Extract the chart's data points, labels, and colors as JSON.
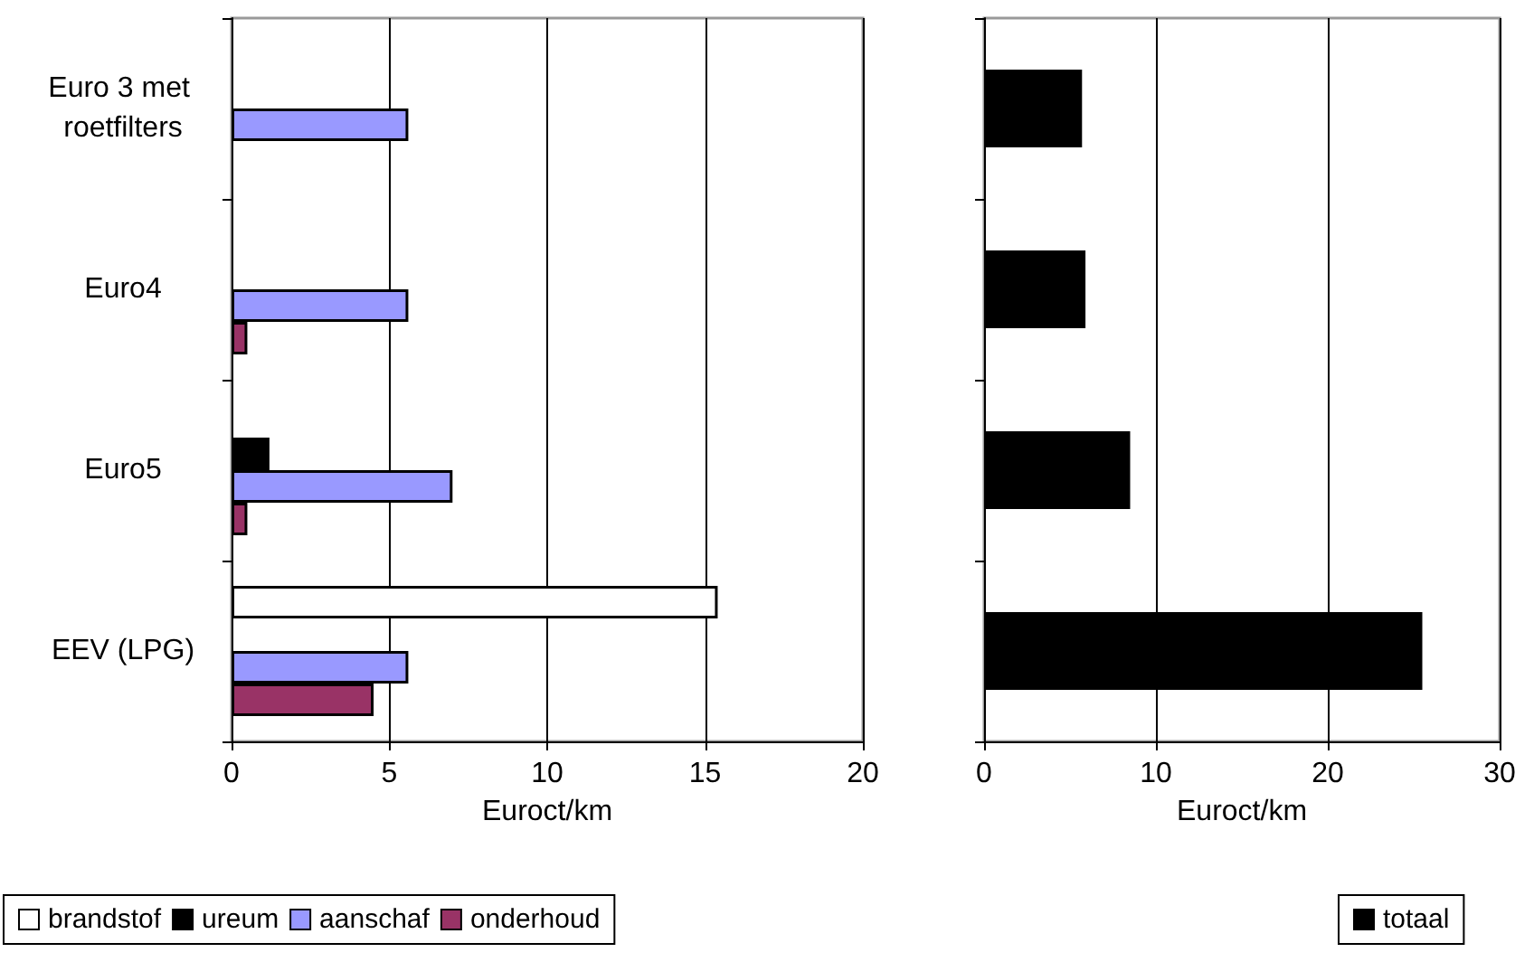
{
  "chart_data": [
    {
      "type": "bar",
      "orientation": "horizontal",
      "categories": [
        "Euro 3 met roetfilters",
        "Euro4",
        "Euro5",
        "EEV (LPG)"
      ],
      "xlabel": "Euroct/km",
      "xlim": [
        0,
        20
      ],
      "xticks": [
        0,
        5,
        10,
        15,
        20
      ],
      "grid": "x",
      "legend": "bottom",
      "series": [
        {
          "name": "brandstof",
          "color": "#ffffff",
          "values": [
            null,
            null,
            null,
            15.4
          ]
        },
        {
          "name": "ureum",
          "color": "#000000",
          "values": [
            null,
            null,
            1.2,
            null
          ]
        },
        {
          "name": "aanschaf",
          "color": "#9999ff",
          "values": [
            5.6,
            5.6,
            7.0,
            5.6
          ]
        },
        {
          "name": "onderhoud",
          "color": "#993366",
          "values": [
            null,
            0.5,
            0.5,
            4.5
          ]
        }
      ]
    },
    {
      "type": "bar",
      "orientation": "horizontal",
      "categories": [
        "Euro 3 met roetfilters",
        "Euro4",
        "Euro5",
        "EEV (LPG)"
      ],
      "tick_labels": "x",
      "xlabel": "Euroct/km",
      "xlim": [
        0,
        30
      ],
      "xticks": [
        0,
        10,
        20,
        30
      ],
      "grid": "x",
      "legend": "bottom",
      "series": [
        {
          "name": "totaal",
          "color": "#000000",
          "values": [
            5.7,
            5.9,
            8.5,
            25.5
          ]
        }
      ]
    }
  ]
}
